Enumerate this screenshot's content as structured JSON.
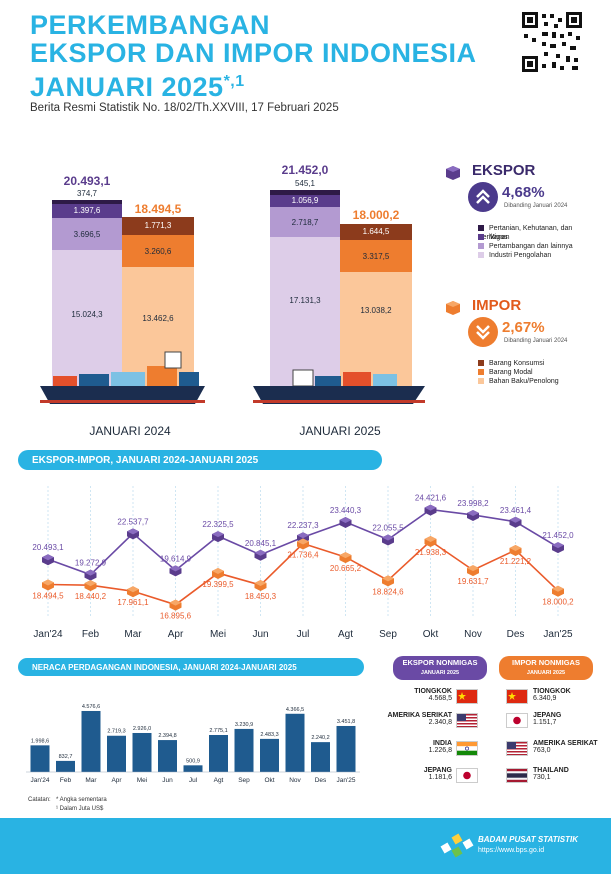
{
  "header": {
    "title_line1": "PERKEMBANGAN",
    "title_line2": "EKSPOR DAN IMPOR INDONESIA",
    "title_line3": "JANUARI 2025",
    "title_sup": "*,1",
    "subtitle": "Berita Resmi Statistik No. 18/02/Th.XXVIII, 17 Februari 2025"
  },
  "top_chart": {
    "jan2024": {
      "label": "JANUARI 2024",
      "ekspor_total": "20.493,1",
      "ekspor": [
        "374,7",
        "1.397,6",
        "3.696,5",
        "15.024,3"
      ],
      "impor_total": "18.494,5",
      "impor": [
        "1.771,3",
        "3.260,6",
        "13.462,6"
      ]
    },
    "jan2025": {
      "label": "JANUARI 2025",
      "ekspor_total": "21.452,0",
      "ekspor": [
        "545,1",
        "1.056,9",
        "2.718,7",
        "17.131,3"
      ],
      "impor_total": "18.000,2",
      "impor": [
        "1.644,5",
        "3.317,5",
        "13.038,2"
      ]
    }
  },
  "ekspor_panel": {
    "heading": "EKSPOR",
    "change": "4,68%",
    "note": "Dibanding Januari 2024",
    "legend": [
      "Pertanian, Kehutanan, dan Perikanan",
      "Migas",
      "Pertambangan dan lainnya",
      "Industri Pengolahan"
    ]
  },
  "impor_panel": {
    "heading": "IMPOR",
    "change": "2,67%",
    "note": "Dibanding Januari 2024",
    "legend": [
      "Barang Konsumsi",
      "Barang Modal",
      "Bahan Baku/Penolong"
    ]
  },
  "colors": {
    "accent": "#29b3e3",
    "ekspor_line": "#6a4aa5",
    "impor_line": "#ea5b2b",
    "ekspor_layers": [
      "#2e1a47",
      "#5a3c8c",
      "#b39ad1",
      "#ddcde8"
    ],
    "impor_layers": [
      "#8c3b1c",
      "#ee7d2f",
      "#fbc79a"
    ],
    "bar": "#1f5b8f"
  },
  "line_section_title": "EKSPOR-IMPOR, JANUARI 2024-JANUARI 2025",
  "bar_section_title": "NERACA PERDAGANGAN INDONESIA, JANUARI 2024-JANUARI 2025",
  "chart_data": [
    {
      "type": "line",
      "categories": [
        "Jan'24",
        "Feb",
        "Mar",
        "Apr",
        "Mei",
        "Jun",
        "Jul",
        "Agt",
        "Sep",
        "Okt",
        "Nov",
        "Des",
        "Jan'25"
      ],
      "series": [
        {
          "values": [
            20493.1,
            19272.9,
            22537.7,
            19614.9,
            22325.5,
            20845.1,
            22237.3,
            23440.3,
            22055.5,
            24421.6,
            23998.2,
            23461.4,
            21452.0
          ],
          "labels": [
            "20.493,1",
            "19.272,9",
            "22.537,7",
            "19.614,9",
            "22.325,5",
            "20.845,1",
            "22.237,3",
            "23.440,3",
            "22.055,5",
            "24.421,6",
            "23.998,2",
            "23.461,4",
            "21.452,0"
          ]
        },
        {
          "values": [
            18494.5,
            18440.2,
            17961.1,
            16895.6,
            19399.5,
            18450.3,
            21736.4,
            20665.2,
            18824.6,
            21938.3,
            19631.7,
            21221.2,
            18000.2
          ],
          "labels": [
            "18.494,5",
            "18.440,2",
            "17.961,1",
            "16.895,6",
            "19.399,5",
            "18.450,3",
            "21.736,4",
            "20.665,2",
            "18.824,6",
            "21.938,3",
            "19.631,7",
            "21.221,2",
            "18.000,2"
          ]
        }
      ]
    },
    {
      "type": "bar",
      "categories": [
        "Jan'24",
        "Feb",
        "Mar",
        "Apr",
        "Mei",
        "Jun",
        "Jul",
        "Agt",
        "Sep",
        "Okt",
        "Nov",
        "Des",
        "Jan'25"
      ],
      "values": [
        1998.6,
        832.7,
        4576.6,
        2719.3,
        2926.0,
        2394.8,
        500.9,
        2775.1,
        3230.9,
        2483.3,
        4366.5,
        2240.2,
        3451.8
      ],
      "labels": [
        "1.998,6",
        "832,7",
        "4.576,6",
        "2.719,3",
        "2.926,0",
        "2.394,8",
        "500,9",
        "2.775,1",
        "3.230,9",
        "2.483,3",
        "4.366,5",
        "2.240,2",
        "3.451,8"
      ]
    }
  ],
  "nonmigas": {
    "ekspor_title": "EKSPOR NONMIGAS",
    "impor_title": "IMPOR NONMIGAS",
    "period": "JANUARI 2025",
    "ekspor": [
      {
        "name": "TIONGKOK",
        "value": "4.568,5",
        "flag": "china-flag"
      },
      {
        "name": "AMERIKA SERIKAT",
        "value": "2.340,8",
        "flag": "usa-flag"
      },
      {
        "name": "INDIA",
        "value": "1.226,8",
        "flag": "india-flag"
      },
      {
        "name": "JEPANG",
        "value": "1.181,6",
        "flag": "japan-flag"
      }
    ],
    "impor": [
      {
        "name": "TIONGKOK",
        "value": "6.340,9",
        "flag": "china-flag"
      },
      {
        "name": "JEPANG",
        "value": "1.151,7",
        "flag": "japan-flag"
      },
      {
        "name": "AMERIKA SERIKAT",
        "value": "763,0",
        "flag": "usa-flag"
      },
      {
        "name": "THAILAND",
        "value": "730,1",
        "flag": "thailand-flag"
      }
    ]
  },
  "notes": {
    "label": "Catatan:",
    "note1": "Angka sementara",
    "note2": "Dalam Juta US$"
  },
  "footer": {
    "org": "BADAN PUSAT STATISTIK",
    "url": "https://www.bps.go.id"
  }
}
